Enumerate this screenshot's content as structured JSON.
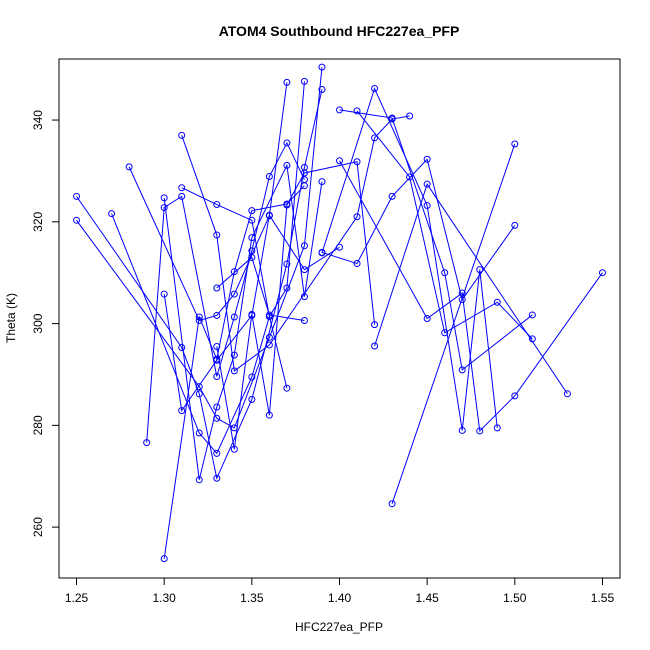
{
  "chart_data": {
    "type": "line",
    "title": "ATOM4 Southbound HFC227ea_PFP",
    "xlabel": "HFC227ea_PFP",
    "ylabel": "Theta (K)",
    "xlim": [
      1.24,
      1.56
    ],
    "ylim": [
      250,
      352
    ],
    "xticks": [
      1.25,
      1.3,
      1.35,
      1.4,
      1.45,
      1.5,
      1.55
    ],
    "xtick_labels": [
      "1.25",
      "1.30",
      "1.35",
      "1.40",
      "1.45",
      "1.50",
      "1.55"
    ],
    "yticks": [
      260,
      280,
      300,
      320,
      340
    ],
    "ytick_labels": [
      "260",
      "280",
      "300",
      "320",
      "340"
    ],
    "grid": false,
    "color": "#0000ff",
    "series": [
      {
        "x": [
          1.25,
          1.31,
          1.32,
          1.33,
          1.35,
          1.37,
          1.38,
          1.39
        ],
        "y": [
          325.0,
          295.3,
          286.2,
          269.6,
          285.1,
          311.7,
          330.7,
          346.0
        ]
      },
      {
        "x": [
          1.25,
          1.32,
          1.33,
          1.34,
          1.36,
          1.38,
          1.39
        ],
        "y": [
          320.3,
          287.6,
          281.4,
          279.5,
          297.3,
          315.3,
          350.4
        ]
      },
      {
        "x": [
          1.27,
          1.32,
          1.33,
          1.35,
          1.36,
          1.37,
          1.38
        ],
        "y": [
          321.6,
          278.5,
          274.5,
          289.5,
          301.4,
          307.0,
          347.6
        ]
      },
      {
        "x": [
          1.28,
          1.32,
          1.33,
          1.34,
          1.36,
          1.37
        ],
        "y": [
          330.8,
          300.6,
          301.6,
          305.8,
          321.2,
          347.4
        ]
      },
      {
        "x": [
          1.29,
          1.3,
          1.31,
          1.33,
          1.34,
          1.35,
          1.36,
          1.37,
          1.38
        ],
        "y": [
          276.6,
          322.8,
          325.0,
          289.6,
          301.3,
          314.3,
          328.9,
          335.5,
          328.3
        ]
      },
      {
        "x": [
          1.3,
          1.32,
          1.33,
          1.34,
          1.35,
          1.37,
          1.38
        ],
        "y": [
          253.8,
          301.3,
          293.0,
          310.2,
          322.2,
          323.5,
          327.1
        ]
      },
      {
        "x": [
          1.3,
          1.31,
          1.33,
          1.35,
          1.36,
          1.38,
          1.4
        ],
        "y": [
          305.8,
          282.9,
          292.8,
          301.6,
          321.3,
          310.6,
          315.0
        ]
      },
      {
        "x": [
          1.3,
          1.32,
          1.33,
          1.34,
          1.35,
          1.37,
          1.38,
          1.39
        ],
        "y": [
          324.7,
          269.3,
          283.6,
          293.8,
          316.9,
          331.1,
          305.3,
          327.9
        ]
      },
      {
        "x": [
          1.31,
          1.33,
          1.35,
          1.36,
          1.37
        ],
        "y": [
          326.7,
          323.4,
          320.3,
          301.4,
          287.3
        ]
      },
      {
        "x": [
          1.31,
          1.33,
          1.34,
          1.36,
          1.41,
          1.42,
          1.43,
          1.44
        ],
        "y": [
          337.0,
          317.4,
          290.7,
          295.8,
          321.0,
          336.5,
          340.2,
          340.8
        ]
      },
      {
        "x": [
          1.33,
          1.34,
          1.35,
          1.36,
          1.37,
          1.38,
          1.41,
          1.42
        ],
        "y": [
          295.5,
          275.3,
          301.8,
          282.0,
          323.3,
          329.6,
          331.8,
          299.8
        ]
      },
      {
        "x": [
          1.33,
          1.35,
          1.36,
          1.38
        ],
        "y": [
          307.0,
          313.0,
          301.7,
          300.6
        ]
      },
      {
        "x": [
          1.39,
          1.42,
          1.45,
          1.47,
          1.48,
          1.49
        ],
        "y": [
          313.9,
          346.2,
          323.2,
          279.0,
          310.6,
          279.5
        ]
      },
      {
        "x": [
          1.4,
          1.43,
          1.46,
          1.47,
          1.51
        ],
        "y": [
          342.0,
          340.4,
          310.0,
          290.9,
          301.7
        ]
      },
      {
        "x": [
          1.4,
          1.45,
          1.47,
          1.48,
          1.5,
          1.55
        ],
        "y": [
          332.0,
          301.0,
          306.0,
          278.9,
          285.8,
          310.0
        ]
      },
      {
        "x": [
          1.41,
          1.44,
          1.46,
          1.49,
          1.51
        ],
        "y": [
          341.8,
          328.8,
          298.2,
          304.2,
          297.0
        ]
      },
      {
        "x": [
          1.39,
          1.41,
          1.43,
          1.45,
          1.47,
          1.5
        ],
        "y": [
          314.0,
          311.8,
          325.0,
          332.3,
          304.7,
          319.3
        ]
      },
      {
        "x": [
          1.42,
          1.45,
          1.53
        ],
        "y": [
          295.6,
          327.4,
          286.2
        ]
      },
      {
        "x": [
          1.43,
          1.5
        ],
        "y": [
          264.6,
          335.3
        ]
      }
    ]
  }
}
